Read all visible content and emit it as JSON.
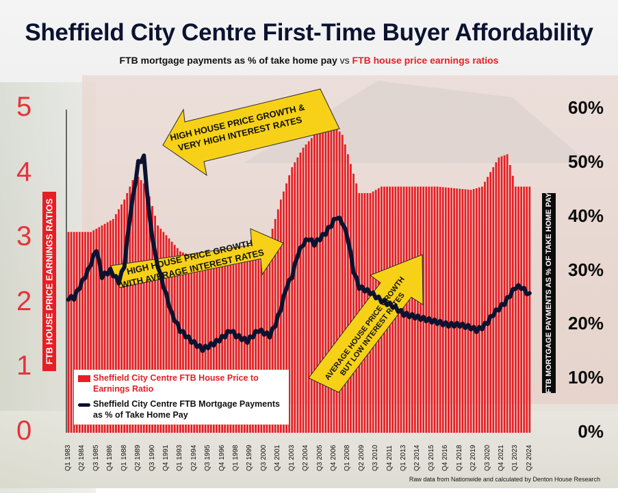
{
  "title": "Sheffield City Centre First-Time Buyer Affordability",
  "subtitle": {
    "part1": "FTB mortgage payments as % of take home pay",
    "vs": " vs ",
    "part2": "FTB house price earnings ratios"
  },
  "source_note": "Raw data from Nationwide and calculated by Denton House Research",
  "annotations": {
    "arrow1_line1": "HIGH HOUSE PRICE GROWTH &",
    "arrow1_line2": "VERY HIGH INTEREST RATES",
    "arrow2_line1": "HIGH HOUSE PRICE GROWTH",
    "arrow2_line2": "WITH AVERAGE INTEREST RATES",
    "arrow3_line1": "AVERAGE HOUSE PRICE GROWTH",
    "arrow3_line2": "BUT LOW INTEREST RATES"
  },
  "colors": {
    "bars": "#e51f25",
    "line": "#0b1330",
    "arrow_fill": "#f7d117",
    "arrow_stroke": "#2b2b2b"
  },
  "chart_data": {
    "type": "bar",
    "title": "Sheffield City Centre First-Time Buyer Affordability",
    "ylabel_left": "FTB HOUSE PRICE EARNINGS RATIOS",
    "ylabel_right": "FTB MORTGAGE PAYMENTS AS % OF TAKE HOME PAY",
    "ylim_left": [
      0,
      5
    ],
    "ylim_right": [
      0,
      60
    ],
    "yticks_left": [
      "0",
      "1",
      "2",
      "3",
      "4",
      "5"
    ],
    "yticks_right": [
      "0%",
      "10%",
      "20%",
      "30%",
      "40%",
      "50%",
      "60%"
    ],
    "legend_position": "bottom-left",
    "grid": false,
    "x_tick_labels": [
      "Q1 1983",
      "Q2 1984",
      "Q3 1985",
      "Q4 1986",
      "Q1 1988",
      "Q2 1989",
      "Q3 1990",
      "Q4 1991",
      "Q1 1993",
      "Q2 1994",
      "Q3 1995",
      "Q4 1996",
      "Q1 1998",
      "Q2 1999",
      "Q3 2000",
      "Q4 2001",
      "Q1 2003",
      "Q2 2004",
      "Q3 2005",
      "Q4 2006",
      "Q1 2008",
      "Q2 2009",
      "Q3 2010",
      "Q4 2011",
      "Q1 2013",
      "Q2 2014",
      "Q3 2015",
      "Q4 2016",
      "Q1 2018",
      "Q2 2019",
      "Q3 2020",
      "Q4 2021",
      "Q1 2023",
      "Q2 2024"
    ],
    "series": [
      {
        "name": "Sheffield City Centre FTB House Price to Earnings Ratio",
        "kind": "bar",
        "axis": "left",
        "anchors": [
          [
            "Q1 1983",
            3.1
          ],
          [
            "Q1 1985",
            3.1
          ],
          [
            "Q1 1987",
            3.3
          ],
          [
            "Q1 1988",
            3.6
          ],
          [
            "Q1 1989",
            4.0
          ],
          [
            "Q1 1990",
            3.8
          ],
          [
            "Q1 1991",
            3.2
          ],
          [
            "Q1 1993",
            2.8
          ],
          [
            "Q1 1996",
            2.6
          ],
          [
            "Q1 1998",
            2.6
          ],
          [
            "Q1 2000",
            2.7
          ],
          [
            "Q1 2001",
            3.0
          ],
          [
            "Q1 2002",
            3.6
          ],
          [
            "Q1 2003",
            4.1
          ],
          [
            "Q1 2004",
            4.4
          ],
          [
            "Q1 2005",
            4.6
          ],
          [
            "Q1 2006",
            4.7
          ],
          [
            "Q1 2007",
            4.7
          ],
          [
            "Q3 2007",
            4.6
          ],
          [
            "Q3 2008",
            4.0
          ],
          [
            "Q1 2009",
            3.7
          ],
          [
            "Q1 2010",
            3.7
          ],
          [
            "Q1 2011",
            3.8
          ],
          [
            "Q1 2013",
            3.8
          ],
          [
            "Q1 2016",
            3.8
          ],
          [
            "Q1 2019",
            3.75
          ],
          [
            "Q1 2020",
            3.8
          ],
          [
            "Q1 2021",
            4.1
          ],
          [
            "Q3 2021",
            4.25
          ],
          [
            "Q2 2022",
            4.3
          ],
          [
            "Q1 2023",
            3.8
          ],
          [
            "Q2 2024",
            3.8
          ]
        ]
      },
      {
        "name": "Sheffield City Centre FTB Mortgage Payments as % of Take Home Pay",
        "kind": "line",
        "axis": "right",
        "anchors": [
          [
            "Q1 1983",
            25
          ],
          [
            "Q3 1983",
            25
          ],
          [
            "Q1 1984",
            27
          ],
          [
            "Q4 1984",
            30
          ],
          [
            "Q3 1985",
            34
          ],
          [
            "Q1 1986",
            29
          ],
          [
            "Q4 1986",
            30
          ],
          [
            "Q3 1987",
            28
          ],
          [
            "Q1 1988",
            31
          ],
          [
            "Q3 1988",
            40
          ],
          [
            "Q2 1989",
            50
          ],
          [
            "Q4 1989",
            51
          ],
          [
            "Q2 1990",
            40
          ],
          [
            "Q4 1990",
            33
          ],
          [
            "Q2 1991",
            29
          ],
          [
            "Q2 1992",
            22
          ],
          [
            "Q1 1993",
            19
          ],
          [
            "Q1 1994",
            17
          ],
          [
            "Q1 1995",
            15.5
          ],
          [
            "Q3 1995",
            16
          ],
          [
            "Q1 1996",
            16.5
          ],
          [
            "Q1 1997",
            18
          ],
          [
            "Q3 1997",
            19
          ],
          [
            "Q1 1998",
            18
          ],
          [
            "Q3 1998",
            17.5
          ],
          [
            "Q1 1999",
            17
          ],
          [
            "Q3 1999",
            18
          ],
          [
            "Q1 2000",
            19
          ],
          [
            "Q1 2001",
            18
          ],
          [
            "Q3 2001",
            20
          ],
          [
            "Q1 2002",
            23
          ],
          [
            "Q3 2002",
            27
          ],
          [
            "Q1 2003",
            29
          ],
          [
            "Q3 2003",
            33
          ],
          [
            "Q1 2004",
            35
          ],
          [
            "Q3 2004",
            36
          ],
          [
            "Q1 2005",
            35
          ],
          [
            "Q3 2005",
            36
          ],
          [
            "Q1 2006",
            37
          ],
          [
            "Q3 2006",
            38.5
          ],
          [
            "Q1 2007",
            40
          ],
          [
            "Q3 2007",
            39
          ],
          [
            "Q1 2008",
            36
          ],
          [
            "Q3 2008",
            30
          ],
          [
            "Q1 2009",
            27
          ],
          [
            "Q1 2010",
            26
          ],
          [
            "Q1 2011",
            24.5
          ],
          [
            "Q1 2012",
            23.5
          ],
          [
            "Q1 2013",
            22
          ],
          [
            "Q1 2014",
            21.5
          ],
          [
            "Q1 2015",
            21
          ],
          [
            "Q1 2016",
            20.5
          ],
          [
            "Q1 2017",
            20
          ],
          [
            "Q1 2018",
            20
          ],
          [
            "Q1 2019",
            19.5
          ],
          [
            "Q3 2019",
            19
          ],
          [
            "Q1 2020",
            19.5
          ],
          [
            "Q3 2020",
            20.5
          ],
          [
            "Q1 2021",
            22
          ],
          [
            "Q1 2022",
            24
          ],
          [
            "Q1 2023",
            27
          ],
          [
            "Q3 2023",
            27
          ],
          [
            "Q1 2024",
            26
          ],
          [
            "Q2 2024",
            25.5
          ]
        ]
      }
    ]
  }
}
